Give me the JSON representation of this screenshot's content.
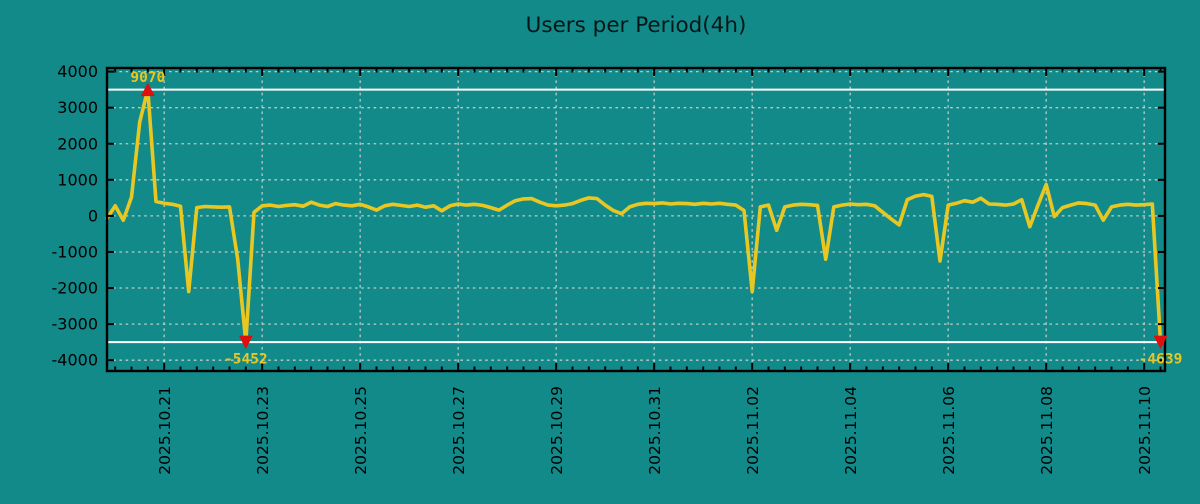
{
  "chart_data": {
    "type": "line",
    "title": "Users per Period(4h)",
    "xlabel": "",
    "ylabel": "",
    "grid": true,
    "legend": "none",
    "period_hours": 4,
    "ylim": [
      -4300,
      4100
    ],
    "clip_value": 3500,
    "y_tick_labels": [
      "4000",
      "3000",
      "2000",
      "1000",
      "0",
      "-1000",
      "-2000",
      "-3000",
      "-4000"
    ],
    "x_tick_labels": [
      "2025.10.21",
      "2025.10.23",
      "2025.10.25",
      "2025.10.27",
      "2025.10.29",
      "2025.10.31",
      "2025.11.02",
      "2025.11.04",
      "2025.11.06",
      "2025.11.08",
      "2025.11.10"
    ],
    "x_first_major_point": 7,
    "x_major_every_points": 12,
    "series": [
      {
        "name": "Users",
        "values": [
          -70,
          280,
          -120,
          520,
          2600,
          9070,
          400,
          350,
          320,
          270,
          -2100,
          230,
          260,
          250,
          240,
          250,
          -1200,
          -5452,
          100,
          280,
          300,
          260,
          290,
          310,
          270,
          380,
          300,
          260,
          340,
          300,
          280,
          320,
          250,
          160,
          280,
          320,
          290,
          260,
          300,
          240,
          280,
          140,
          280,
          330,
          300,
          320,
          290,
          230,
          160,
          300,
          420,
          470,
          480,
          380,
          300,
          280,
          300,
          340,
          430,
          500,
          480,
          300,
          150,
          60,
          250,
          320,
          350,
          340,
          360,
          330,
          350,
          340,
          320,
          350,
          330,
          350,
          320,
          300,
          150,
          -2100,
          250,
          300,
          -400,
          250,
          300,
          320,
          310,
          290,
          -1200,
          250,
          300,
          330,
          310,
          320,
          280,
          100,
          -80,
          -250,
          450,
          550,
          590,
          540,
          -1250,
          300,
          350,
          420,
          380,
          490,
          330,
          320,
          300,
          330,
          450,
          -300,
          300,
          870,
          -20,
          230,
          300,
          360,
          340,
          300,
          -120,
          250,
          300,
          320,
          300,
          310,
          330,
          -4639
        ]
      }
    ],
    "annotations": [
      {
        "id": "max",
        "index": 5,
        "value": 9070,
        "label": "9070",
        "marker": "up"
      },
      {
        "id": "min",
        "index": 17,
        "value": -5452,
        "label": "-5452",
        "marker": "down"
      },
      {
        "id": "last",
        "index": 129,
        "value": -4639,
        "label": "-4639",
        "marker": "down"
      }
    ],
    "colors": {
      "background": "#128a8a",
      "line": "#e8c723",
      "grid": "#b9cdc7",
      "clip_line": "#ffffff",
      "frame": "#000000",
      "tick_text": "#000000",
      "title_text": "#071717",
      "marker": "#dd0f0f",
      "annotation_text": "#e8c723"
    }
  }
}
